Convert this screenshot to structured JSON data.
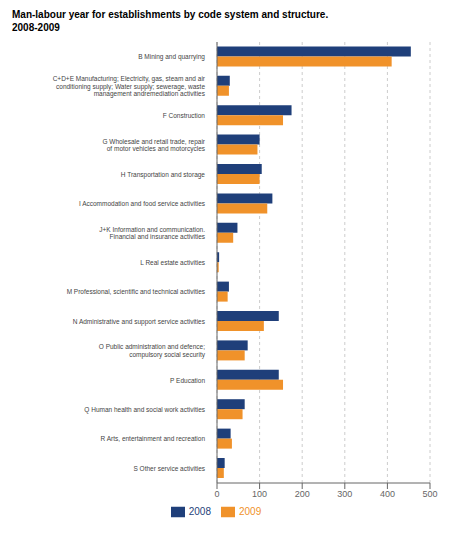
{
  "chart_data": {
    "type": "bar",
    "orientation": "horizontal",
    "title": "Man-labour year for establishments by code system and structure.\n2008-2009",
    "categories": [
      "B Mining and quarrying",
      "C+D+E Manufacturing; Electricity, gas, steam and air\nconditioning supply; Water supply; sewerage, waste\nmanagement andremediation activities",
      "F Construction",
      "G Wholesale and retail trade, repair\nof motor vehicles and motorcycles",
      "H Transportation and storage",
      "I Accommodation and food service activities",
      "J+K Information and communication.\nFinancial and insurance activities",
      "L Real estate activities",
      "M Professional, scientific and technical activities",
      "N Administrative and support service activities",
      "O Public administration and defence;\ncompulsory social security",
      "P Education",
      "Q Human health and social work activities",
      "R Arts, entertainment and recreation",
      "S Other service activities"
    ],
    "series": [
      {
        "name": "2008",
        "color": "#1f3f7a",
        "values": [
          455,
          30,
          175,
          100,
          105,
          130,
          48,
          5,
          28,
          145,
          72,
          145,
          65,
          32,
          18
        ]
      },
      {
        "name": "2009",
        "color": "#f0922a",
        "values": [
          410,
          28,
          155,
          95,
          100,
          118,
          38,
          4,
          25,
          110,
          65,
          155,
          60,
          35,
          16
        ]
      }
    ],
    "xlim": [
      0,
      500
    ],
    "xticks": [
      0,
      100,
      200,
      300,
      400,
      500
    ],
    "grid": true,
    "legend": "bottom"
  }
}
